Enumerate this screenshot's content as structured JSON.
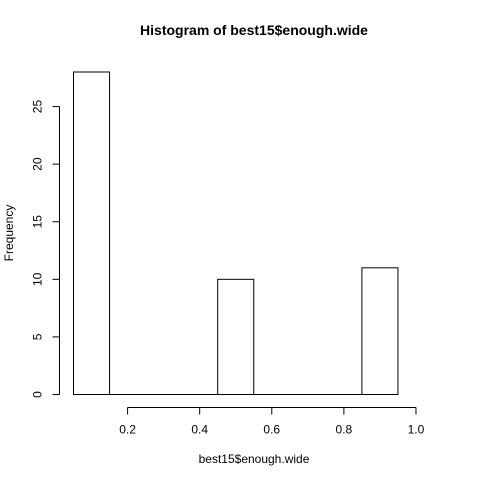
{
  "chart_data": {
    "type": "bar",
    "title": "Histogram of best15$enough.wide",
    "xlabel": "best15$enough.wide",
    "ylabel": "Frequency",
    "bins": [
      {
        "start": 0.05,
        "end": 0.15,
        "count": 28
      },
      {
        "start": 0.15,
        "end": 0.25,
        "count": 0
      },
      {
        "start": 0.25,
        "end": 0.35,
        "count": 0
      },
      {
        "start": 0.35,
        "end": 0.45,
        "count": 0
      },
      {
        "start": 0.45,
        "end": 0.55,
        "count": 10
      },
      {
        "start": 0.55,
        "end": 0.65,
        "count": 0
      },
      {
        "start": 0.65,
        "end": 0.75,
        "count": 0
      },
      {
        "start": 0.75,
        "end": 0.85,
        "count": 0
      },
      {
        "start": 0.85,
        "end": 0.95,
        "count": 11
      }
    ],
    "xlim": [
      0.05,
      1.05
    ],
    "ylim": [
      0,
      28
    ],
    "x_ticks": [
      "0.2",
      "0.4",
      "0.6",
      "0.8",
      "1.0"
    ],
    "y_ticks": [
      "0",
      "5",
      "10",
      "15",
      "20",
      "25"
    ],
    "grid": false,
    "colors": {
      "bar_fill": "#ffffff",
      "bar_stroke": "#000000"
    }
  }
}
